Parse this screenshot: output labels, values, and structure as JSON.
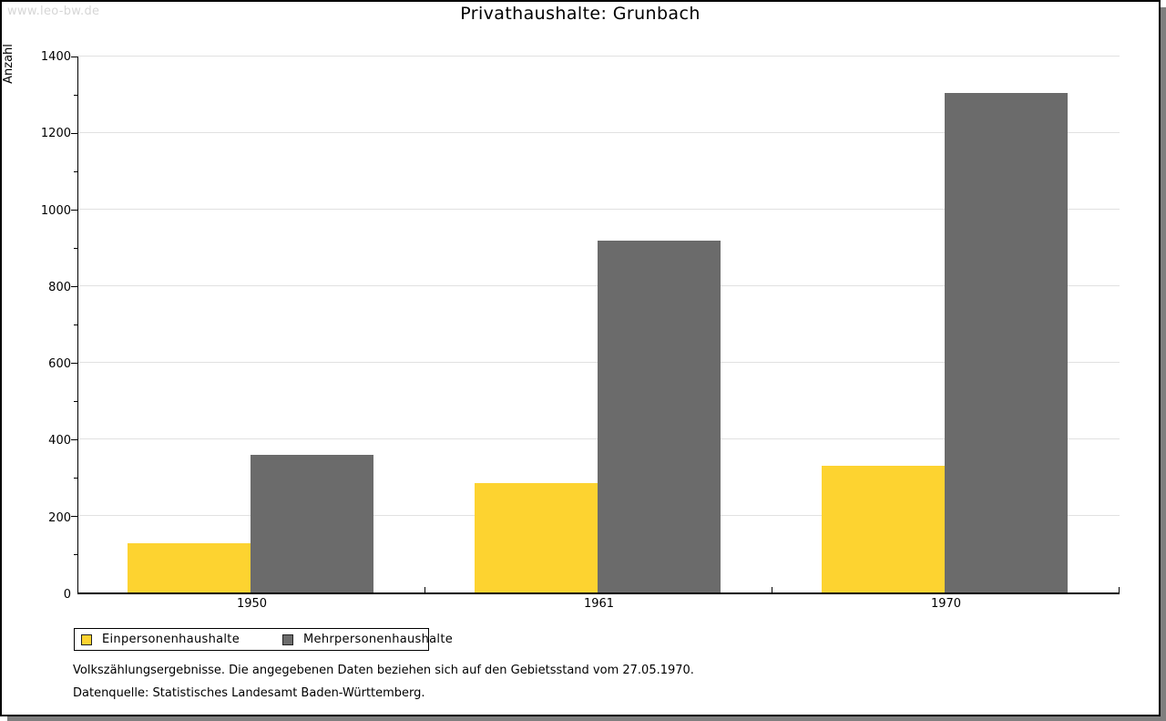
{
  "watermark": "www.leo-bw.de",
  "title": "Privathaushalte: Grunbach",
  "chart_data": {
    "type": "bar",
    "title": "Privathaushalte: Grunbach",
    "xlabel": "",
    "ylabel": "Anzahl",
    "categories": [
      "1950",
      "1961",
      "1970"
    ],
    "series": [
      {
        "name": "Einpersonenhaushalte",
        "color": "#fdd330",
        "values": [
          128,
          286,
          332
        ]
      },
      {
        "name": "Mehrpersonenhaushalte",
        "color": "#6b6b6b",
        "values": [
          360,
          918,
          1305
        ]
      }
    ],
    "ylim": [
      0,
      1400
    ],
    "ytick_step": 200,
    "y_minor_tick_step": 100,
    "grid": true,
    "legend_position": "bottom-left"
  },
  "footnotes": [
    "Volkszählungsergebnisse. Die angegebenen Daten beziehen sich auf den Gebietsstand vom 27.05.1970.",
    "Datenquelle: Statistisches Landesamt Baden-Württemberg."
  ],
  "colors": {
    "bar_yellow": "#fdd330",
    "bar_gray": "#6b6b6b",
    "gridline": "#e1e1e1",
    "watermark": "#d6d6d6",
    "frame_border": "#000000",
    "frame_shadow": "#7f7f7f"
  }
}
